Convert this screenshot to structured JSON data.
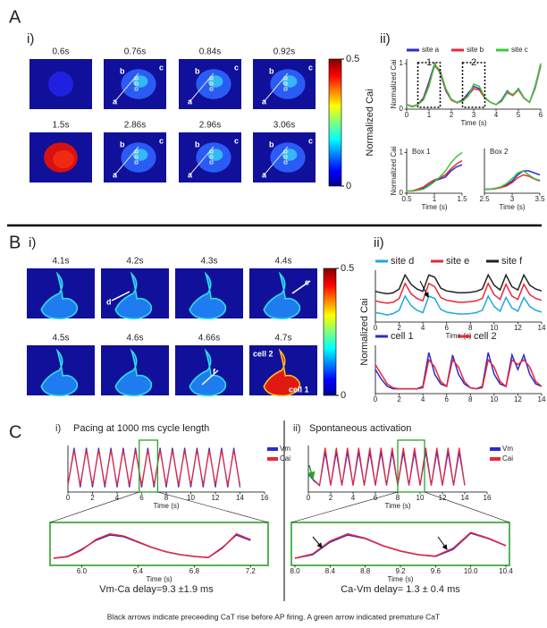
{
  "figure": {
    "panel_A": {
      "letter": "A",
      "sub_i": "i)",
      "sub_ii": "ii)",
      "frame_times": [
        "0.6s",
        "0.76s",
        "0.84s",
        "0.92s",
        "1.5s",
        "2.86s",
        "2.96s",
        "3.06s"
      ],
      "site_labels": [
        "a",
        "b",
        "c"
      ]
    },
    "panel_B": {
      "letter": "B",
      "sub_i": "i)",
      "sub_ii": "ii)",
      "frame_times": [
        "4.1s",
        "4.2s",
        "4.3s",
        "4.4s",
        "4.5s",
        "4.6s",
        "4.66s",
        "4.7s"
      ],
      "site_labels": [
        "d",
        "e",
        "f"
      ],
      "cell_labels": [
        "cell 2",
        "cell 1"
      ]
    },
    "panel_C": {
      "letter": "C",
      "sub_i": "i)",
      "sub_ii": "ii)",
      "delay_i": "Vm-Ca delay=9.3 ±1.9 ms",
      "delay_ii": "Ca-Vm delay= 1.3 ± 0.4 ms"
    },
    "colorbar": {
      "label": "Normalized Cai",
      "lim": [
        0,
        0.5
      ],
      "ticks": [
        0,
        0.5
      ]
    },
    "caption": "Black arrows indicate preceeding CaT rise before AP firing. A green arrow indicated premature CaT"
  },
  "chart_data": [
    {
      "type": "line",
      "xlabel": "Time (s)",
      "ylabel": "Normalized Cai",
      "legend": "top",
      "annotations": [
        "1",
        "2"
      ],
      "x": [
        0,
        0.25,
        0.5,
        0.75,
        1,
        1.25,
        1.5,
        1.75,
        2,
        2.25,
        2.5,
        2.75,
        3,
        3.25,
        3.5,
        3.75,
        4,
        4.25,
        4.5,
        4.75,
        5,
        5.25,
        5.5,
        5.75,
        6
      ],
      "xlim": [
        0,
        6
      ],
      "xticks": [
        0,
        1,
        2,
        3,
        4,
        5,
        6
      ],
      "ylim": [
        0,
        1.1
      ],
      "yticks": [
        0,
        1
      ],
      "series": [
        {
          "name": "site a",
          "color": "#2b2bd0",
          "values": [
            0.1,
            0.05,
            0.1,
            0.25,
            0.6,
            1,
            0.8,
            0.4,
            0.2,
            0.15,
            0.2,
            0.35,
            0.5,
            0.45,
            0.25,
            0.15,
            0.1,
            0.2,
            0.4,
            0.3,
            0.45,
            0.25,
            0.15,
            0.5,
            1
          ]
        },
        {
          "name": "site b",
          "color": "#e8283a",
          "values": [
            0.1,
            0.06,
            0.1,
            0.22,
            0.55,
            0.95,
            0.82,
            0.42,
            0.2,
            0.14,
            0.18,
            0.3,
            0.45,
            0.42,
            0.24,
            0.15,
            0.1,
            0.18,
            0.36,
            0.3,
            0.42,
            0.24,
            0.15,
            0.46,
            0.95
          ]
        },
        {
          "name": "site c",
          "color": "#3cc83c",
          "values": [
            0.1,
            0.05,
            0.1,
            0.2,
            0.5,
            0.98,
            0.85,
            0.45,
            0.22,
            0.15,
            0.17,
            0.28,
            0.55,
            0.5,
            0.26,
            0.15,
            0.1,
            0.17,
            0.38,
            0.32,
            0.44,
            0.25,
            0.15,
            0.48,
            1
          ]
        }
      ]
    },
    {
      "type": "line",
      "title": "Box 1",
      "xlabel": "Time (s)",
      "ylabel": "Normalized Cai",
      "x": [
        0.5,
        0.6,
        0.7,
        0.8,
        0.9,
        1,
        1.1,
        1.2,
        1.3,
        1.4,
        1.5
      ],
      "xlim": [
        0.5,
        1.5
      ],
      "xticks": [
        0.5,
        1,
        1.5
      ],
      "ylim": [
        0,
        1.1
      ],
      "yticks": [
        0,
        1
      ],
      "series": [
        {
          "name": "site a",
          "color": "#2b2bd0",
          "values": [
            0.05,
            0.05,
            0.08,
            0.12,
            0.2,
            0.3,
            0.35,
            0.4,
            0.55,
            0.65,
            0.7
          ]
        },
        {
          "name": "site b",
          "color": "#e8283a",
          "values": [
            0.05,
            0.06,
            0.1,
            0.15,
            0.25,
            0.33,
            0.38,
            0.45,
            0.6,
            0.72,
            0.8
          ]
        },
        {
          "name": "site c",
          "color": "#3cc83c",
          "values": [
            0.05,
            0.05,
            0.07,
            0.1,
            0.18,
            0.28,
            0.4,
            0.55,
            0.75,
            0.9,
            1
          ]
        }
      ]
    },
    {
      "type": "line",
      "title": "Box 2",
      "xlabel": "Time (s)",
      "x": [
        2.5,
        2.6,
        2.7,
        2.8,
        2.9,
        3,
        3.1,
        3.2,
        3.3,
        3.4,
        3.5
      ],
      "xlim": [
        2.5,
        3.5
      ],
      "xticks": [
        2.5,
        3,
        3.5
      ],
      "ylim": [
        0,
        1.1
      ],
      "series": [
        {
          "name": "site a",
          "color": "#2b2bd0",
          "values": [
            0.1,
            0.1,
            0.12,
            0.15,
            0.2,
            0.3,
            0.45,
            0.55,
            0.55,
            0.5,
            0.45
          ]
        },
        {
          "name": "site b",
          "color": "#e8283a",
          "values": [
            0.1,
            0.1,
            0.11,
            0.14,
            0.18,
            0.26,
            0.38,
            0.45,
            0.42,
            0.35,
            0.3
          ]
        },
        {
          "name": "site c",
          "color": "#3cc83c",
          "values": [
            0.1,
            0.1,
            0.12,
            0.16,
            0.24,
            0.36,
            0.5,
            0.55,
            0.45,
            0.36,
            0.32
          ]
        }
      ]
    },
    {
      "type": "line",
      "xlabel": "Time (s)",
      "legend": "top",
      "x": [
        0,
        0.5,
        1,
        1.5,
        2,
        2.5,
        3,
        3.5,
        4,
        4.5,
        5,
        5.5,
        6,
        6.5,
        7,
        7.5,
        8,
        8.5,
        9,
        9.5,
        10,
        10.5,
        11,
        11.5,
        12,
        12.5,
        13,
        13.5,
        14
      ],
      "xlim": [
        0,
        14
      ],
      "xticks": [
        0,
        2,
        4,
        6,
        8,
        10,
        12,
        14
      ],
      "ylim": [
        0,
        1.1
      ],
      "series": [
        {
          "name": "site d",
          "color": "#1ea8e0",
          "values": [
            0.2,
            0.18,
            0.15,
            0.18,
            0.25,
            0.55,
            0.35,
            0.25,
            0.2,
            0.55,
            0.5,
            0.27,
            0.21,
            0.19,
            0.17,
            0.17,
            0.18,
            0.2,
            0.25,
            0.55,
            0.33,
            0.23,
            0.52,
            0.3,
            0.23,
            0.52,
            0.33,
            0.25,
            0.21
          ]
        },
        {
          "name": "site e",
          "color": "#e8283a",
          "values": [
            0.45,
            0.42,
            0.4,
            0.42,
            0.5,
            0.82,
            0.6,
            0.5,
            0.45,
            0.82,
            0.75,
            0.52,
            0.46,
            0.44,
            0.42,
            0.42,
            0.43,
            0.45,
            0.5,
            0.82,
            0.58,
            0.48,
            0.8,
            0.55,
            0.48,
            0.8,
            0.58,
            0.5,
            0.46
          ]
        },
        {
          "name": "site f",
          "color": "#222222",
          "values": [
            0.65,
            0.62,
            0.6,
            0.62,
            0.7,
            1,
            0.8,
            0.7,
            0.65,
            1,
            0.95,
            0.72,
            0.66,
            0.64,
            0.62,
            0.62,
            0.63,
            0.65,
            0.7,
            1,
            0.78,
            0.68,
            1,
            0.75,
            0.68,
            1,
            0.78,
            0.7,
            0.66
          ]
        }
      ]
    },
    {
      "type": "line",
      "legend": "top",
      "x": [
        0,
        0.5,
        1,
        1.5,
        2,
        2.5,
        3,
        3.5,
        4,
        4.5,
        5,
        5.5,
        6,
        6.5,
        7,
        7.5,
        8,
        8.5,
        9,
        9.5,
        10,
        10.5,
        11,
        11.5,
        12,
        12.5,
        13,
        13.5,
        14
      ],
      "xlim": [
        0,
        14
      ],
      "xticks": [
        0,
        2,
        4,
        6,
        8,
        10,
        12,
        14
      ],
      "ylim": [
        0,
        1
      ],
      "series": [
        {
          "name": "cell 1",
          "color": "#2b2bd0",
          "values": [
            0.5,
            0.3,
            0.15,
            0.1,
            0.1,
            0.1,
            0.1,
            0.1,
            0.15,
            0.85,
            0.4,
            0.2,
            0.15,
            0.8,
            0.4,
            0.2,
            0.12,
            0.1,
            0.15,
            0.85,
            0.4,
            0.2,
            0.15,
            0.8,
            0.5,
            0.8,
            0.4,
            0.2,
            0.15
          ]
        },
        {
          "name": "cell 2",
          "color": "#e8283a",
          "values": [
            0.6,
            0.4,
            0.2,
            0.12,
            0.1,
            0.1,
            0.1,
            0.1,
            0.12,
            0.7,
            0.55,
            0.25,
            0.15,
            0.7,
            0.55,
            0.25,
            0.12,
            0.1,
            0.12,
            0.7,
            0.55,
            0.25,
            0.15,
            0.7,
            0.6,
            0.7,
            0.55,
            0.25,
            0.15
          ]
        }
      ]
    },
    {
      "type": "line",
      "title": "Pacing at 1000 ms cycle length",
      "xlabel": "Time (s)",
      "legend": "right",
      "x": [
        0,
        0.5,
        1,
        1.5,
        2,
        2.5,
        3,
        3.5,
        4,
        4.5,
        5,
        5.5,
        6,
        6.5,
        7,
        7.5,
        8,
        8.5,
        9,
        9.5,
        10,
        10.5,
        11,
        11.5,
        12,
        12.5,
        13,
        13.5,
        14
      ],
      "xlim": [
        0,
        16
      ],
      "xticks": [
        0,
        2,
        4,
        6,
        8,
        10,
        12,
        14,
        16
      ],
      "ylim": [
        0,
        1
      ],
      "series": [
        {
          "name": "Vm",
          "color": "#2b2bd0",
          "values": [
            0.15,
            0.95,
            0.1,
            0.95,
            0.1,
            0.95,
            0.1,
            0.95,
            0.1,
            0.95,
            0.1,
            0.95,
            0.1,
            0.95,
            0.1,
            0.95,
            0.1,
            0.95,
            0.1,
            0.95,
            0.1,
            0.95,
            0.1,
            0.95,
            0.1,
            0.95,
            0.1,
            0.95,
            0.1
          ]
        },
        {
          "name": "Cai",
          "color": "#e8283a",
          "values": [
            0.15,
            0.9,
            0.15,
            0.9,
            0.15,
            0.9,
            0.15,
            0.9,
            0.15,
            0.9,
            0.15,
            0.9,
            0.15,
            0.9,
            0.15,
            0.9,
            0.15,
            0.9,
            0.15,
            0.9,
            0.15,
            0.9,
            0.15,
            0.9,
            0.15,
            0.9,
            0.15,
            0.9,
            0.15
          ]
        }
      ]
    },
    {
      "type": "line",
      "xlabel": "Time (s)",
      "x": [
        5.8,
        5.9,
        6,
        6.1,
        6.2,
        6.3,
        6.4,
        6.5,
        6.6,
        6.7,
        6.8,
        6.9,
        7,
        7.1,
        7.2
      ],
      "xlim": [
        5.8,
        7.3
      ],
      "xticks": [
        {
          "value": 6,
          "label": "6.0"
        },
        6.4,
        6.8,
        7.2
      ],
      "ylim": [
        0,
        1
      ],
      "series": [
        {
          "name": "Vm",
          "color": "#2b2bd0",
          "values": [
            0.1,
            0.15,
            0.35,
            0.6,
            0.75,
            0.7,
            0.55,
            0.4,
            0.28,
            0.2,
            0.15,
            0.12,
            0.4,
            0.75,
            0.6
          ]
        },
        {
          "name": "Cai",
          "color": "#e8283a",
          "values": [
            0.1,
            0.14,
            0.33,
            0.62,
            0.78,
            0.72,
            0.56,
            0.4,
            0.28,
            0.2,
            0.15,
            0.12,
            0.38,
            0.78,
            0.62
          ]
        }
      ]
    },
    {
      "type": "line",
      "title": "Spontaneous activation",
      "xlabel": "Time (s)",
      "legend": "right",
      "x": [
        0,
        0.5,
        1,
        1.5,
        2,
        2.5,
        3,
        3.5,
        4,
        4.5,
        5,
        5.5,
        6,
        6.5,
        7,
        7.5,
        8,
        8.5,
        9,
        9.5,
        10,
        10.5,
        11,
        11.5,
        12,
        12.5,
        13,
        13.5,
        14
      ],
      "xlim": [
        0,
        16
      ],
      "xticks": [
        0,
        2,
        4,
        6,
        8,
        10,
        12,
        14,
        16
      ],
      "ylim": [
        0,
        1.05
      ],
      "series": [
        {
          "name": "Vm",
          "color": "#2b2bd0",
          "values": [
            0.4,
            0.25,
            0.15,
            0.9,
            0.15,
            0.9,
            0.15,
            0.9,
            0.15,
            0.9,
            0.15,
            0.9,
            0.15,
            0.9,
            0.15,
            0.9,
            0.15,
            0.9,
            0.15,
            0.9,
            0.15,
            0.9,
            0.15,
            0.9,
            0.15,
            0.9,
            0.15,
            0.9,
            0.15
          ]
        },
        {
          "name": "Cai",
          "color": "#e8283a",
          "values": [
            0.42,
            0.27,
            0.15,
            1,
            0.15,
            1,
            0.15,
            1,
            0.15,
            1,
            0.15,
            1,
            0.15,
            1,
            0.15,
            1,
            0.15,
            1,
            0.15,
            1,
            0.15,
            1,
            0.15,
            1,
            0.15,
            1,
            0.15,
            1,
            0.15
          ]
        }
      ]
    },
    {
      "type": "line",
      "xlabel": "Time (s)",
      "x": [
        8,
        8.2,
        8.4,
        8.6,
        8.8,
        9,
        9.2,
        9.4,
        9.6,
        9.8,
        10,
        10.2,
        10.4
      ],
      "xlim": [
        8,
        10.4
      ],
      "xticks": [
        {
          "value": 8,
          "label": "8.0"
        },
        8.4,
        8.8,
        9.2,
        9.6,
        {
          "value": 10,
          "label": "10.0"
        },
        10.4
      ],
      "ylim": [
        0,
        1
      ],
      "series": [
        {
          "name": "Vm",
          "color": "#2b2bd0",
          "values": [
            0.1,
            0.2,
            0.55,
            0.75,
            0.65,
            0.45,
            0.3,
            0.2,
            0.15,
            0.35,
            0.8,
            0.65,
            0.45
          ]
        },
        {
          "name": "Cai",
          "color": "#e8283a",
          "values": [
            0.1,
            0.22,
            0.58,
            0.78,
            0.66,
            0.45,
            0.3,
            0.2,
            0.16,
            0.38,
            0.82,
            0.66,
            0.45
          ]
        }
      ]
    }
  ]
}
